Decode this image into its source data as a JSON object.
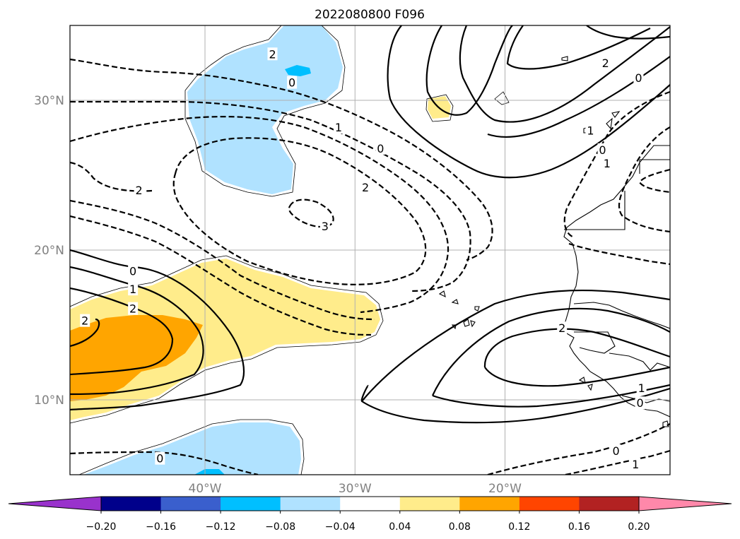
{
  "chart_data": {
    "type": "contour",
    "title": "2022080800 F096",
    "map": {
      "lon_range": [
        -49,
        -9
      ],
      "lat_range": [
        5,
        35
      ],
      "lat_ticks": [
        {
          "value": 30,
          "label": "30°N"
        },
        {
          "value": 20,
          "label": "20°N"
        },
        {
          "value": 10,
          "label": "10°N"
        }
      ],
      "lon_ticks": [
        {
          "value": -40,
          "label": "40°W"
        },
        {
          "value": -30,
          "label": "30°W"
        },
        {
          "value": -20,
          "label": "20°W"
        }
      ],
      "grid": true
    },
    "colorbar": {
      "extend": "both",
      "colors": [
        "#9932cc",
        "#00008b",
        "#3a5fcd",
        "#00bfff",
        "#b0e2ff",
        "#ffffff",
        "#ffec8b",
        "#ffa500",
        "#ff4500",
        "#b22222",
        "#ff88aa"
      ],
      "tick_values": [
        -0.2,
        -0.16,
        -0.12,
        -0.08,
        -0.04,
        0.04,
        0.08,
        0.12,
        0.16,
        0.2
      ],
      "tick_labels": [
        "−0.20",
        "−0.16",
        "−0.12",
        "−0.08",
        "−0.04",
        "0.04",
        "0.08",
        "0.12",
        "0.16",
        "0.20"
      ]
    },
    "contour_labels": [
      {
        "text": "2",
        "lon": -35.5,
        "lat": 33.1
      },
      {
        "text": "0",
        "lon": -34.2,
        "lat": 31.2
      },
      {
        "text": "1",
        "lon": -31.1,
        "lat": 28.2
      },
      {
        "text": "0",
        "lon": -28.3,
        "lat": 26.8
      },
      {
        "text": "2",
        "lon": -29.3,
        "lat": 24.2
      },
      {
        "text": "2",
        "lon": -44.4,
        "lat": 24.0
      },
      {
        "text": "3",
        "lon": -32.0,
        "lat": 21.6
      },
      {
        "text": "0",
        "lon": -44.8,
        "lat": 18.6
      },
      {
        "text": "1",
        "lon": -44.8,
        "lat": 17.4
      },
      {
        "text": "2",
        "lon": -44.8,
        "lat": 16.1
      },
      {
        "text": "2",
        "lon": -48.0,
        "lat": 15.3
      },
      {
        "text": "2",
        "lon": -16.2,
        "lat": 14.8
      },
      {
        "text": "1",
        "lon": -10.9,
        "lat": 10.8
      },
      {
        "text": "0",
        "lon": -11.0,
        "lat": 9.8
      },
      {
        "text": "0",
        "lon": -12.6,
        "lat": 6.6
      },
      {
        "text": "1",
        "lon": -11.3,
        "lat": 5.7
      },
      {
        "text": "0",
        "lon": -43.0,
        "lat": 6.1
      },
      {
        "text": "2",
        "lon": -13.3,
        "lat": 32.5
      },
      {
        "text": "0",
        "lon": -11.1,
        "lat": 31.5
      },
      {
        "text": "1",
        "lon": -14.3,
        "lat": 28.0
      },
      {
        "text": "0",
        "lon": -13.5,
        "lat": 26.7
      },
      {
        "text": "1",
        "lon": -13.2,
        "lat": 25.8
      }
    ]
  }
}
